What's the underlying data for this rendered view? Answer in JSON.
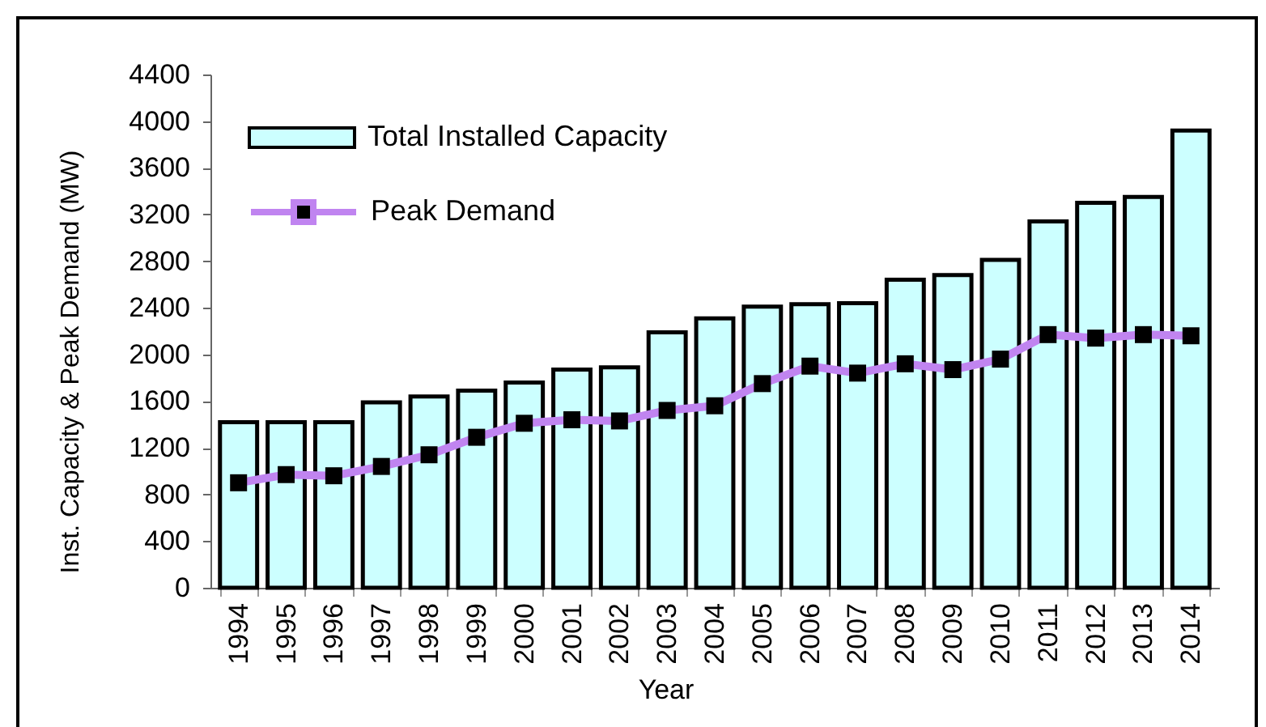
{
  "chart_data": {
    "type": "bar",
    "xlabel": "Year",
    "ylabel": "Inst. Capacity & Peak Demand (MW)",
    "categories": [
      "1994",
      "1995",
      "1996",
      "1997",
      "1998",
      "1999",
      "2000",
      "2001",
      "2002",
      "2003",
      "2004",
      "2005",
      "2006",
      "2007",
      "2008",
      "2009",
      "2010",
      "2011",
      "2012",
      "2013",
      "2014"
    ],
    "series": [
      {
        "name": "Total Installed Capacity",
        "color": "#ccffff",
        "values": [
          1420,
          1420,
          1420,
          1590,
          1640,
          1690,
          1760,
          1870,
          1890,
          2190,
          2310,
          2410,
          2430,
          2440,
          2640,
          2680,
          2810,
          3140,
          3300,
          3350,
          3920
        ]
      },
      {
        "name": "Peak Demand",
        "type": "line",
        "color": "#c084f0",
        "values": [
          900,
          970,
          960,
          1040,
          1140,
          1290,
          1410,
          1440,
          1430,
          1520,
          1560,
          1750,
          1900,
          1840,
          1920,
          1870,
          1960,
          2170,
          2140,
          2170,
          2160
        ]
      }
    ],
    "ylim": [
      0,
      4400
    ],
    "yticks": [
      0,
      400,
      800,
      1200,
      1600,
      2000,
      2400,
      2800,
      3200,
      3600,
      4000,
      4400
    ],
    "legend": "top left",
    "marker": "square",
    "line_style": "solid"
  }
}
